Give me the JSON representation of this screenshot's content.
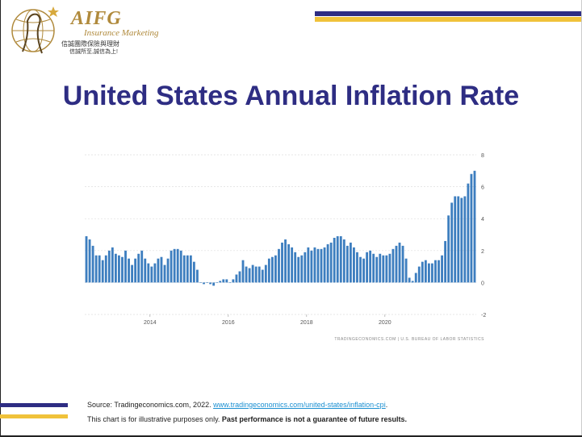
{
  "logo": {
    "name": "AIFG",
    "subtitle": "Insurance Marketing",
    "cn_line1": "信誠團際保險與理財",
    "cn_line2": "信誠所至,誠信為上!"
  },
  "title": "United States Annual Inflation Rate",
  "chart_data": {
    "type": "bar",
    "title": "",
    "xlabel": "",
    "ylabel": "",
    "ylim": [
      -2,
      8
    ],
    "yticks": [
      "8",
      "6",
      "4",
      "2",
      "0",
      "-2"
    ],
    "xticks": [
      "2014",
      "2016",
      "2018",
      "2020"
    ],
    "watermark": "TRADINGECONOMICS.COM | U.S. BUREAU OF LABOR STATISTICS",
    "grid": true,
    "legend": "none",
    "color": "#3d7ebf",
    "series": [
      {
        "values": [
          2.9,
          2.7,
          2.3,
          1.7,
          1.7,
          1.4,
          1.7,
          2.0,
          2.2,
          1.8,
          1.7,
          1.6,
          2.0,
          1.5,
          1.1,
          1.5,
          1.8,
          2.0,
          1.5,
          1.2,
          1.0,
          1.2,
          1.5,
          1.6,
          1.1,
          1.5,
          2.0,
          2.1,
          2.1,
          2.0,
          1.7,
          1.7,
          1.7,
          1.3,
          0.8,
          0.0,
          -0.1,
          0.0,
          -0.1,
          -0.2,
          0.0,
          0.1,
          0.2,
          0.2,
          0.0,
          0.2,
          0.5,
          0.7,
          1.4,
          1.0,
          0.9,
          1.1,
          1.0,
          1.0,
          0.8,
          1.1,
          1.5,
          1.6,
          1.7,
          2.1,
          2.5,
          2.7,
          2.4,
          2.2,
          1.9,
          1.6,
          1.7,
          1.9,
          2.2,
          2.0,
          2.2,
          2.1,
          2.1,
          2.2,
          2.4,
          2.5,
          2.8,
          2.9,
          2.9,
          2.7,
          2.3,
          2.5,
          2.2,
          1.9,
          1.6,
          1.5,
          1.9,
          2.0,
          1.8,
          1.6,
          1.8,
          1.7,
          1.7,
          1.8,
          2.1,
          2.3,
          2.5,
          2.3,
          1.5,
          0.3,
          0.1,
          0.6,
          1.0,
          1.3,
          1.4,
          1.2,
          1.2,
          1.4,
          1.4,
          1.7,
          2.6,
          4.2,
          5.0,
          5.4,
          5.4,
          5.3,
          5.4,
          6.2,
          6.8,
          7.0
        ]
      }
    ]
  },
  "source": {
    "prefix": "Source: Tradingeconomics.com, 2022. ",
    "link": "www.tradingeconomics.com/united-states/inflation-cpi",
    "suffix": "."
  },
  "disclaimer": {
    "normal": "This chart is for illustrative purposes only. ",
    "bold": "Past performance is not a guarantee of future results."
  }
}
